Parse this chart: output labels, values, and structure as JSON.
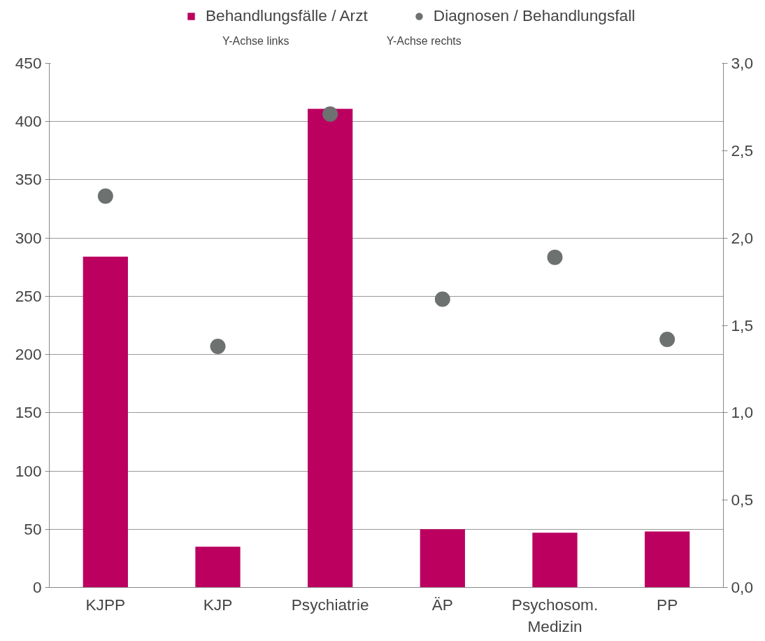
{
  "chart_data": {
    "type": "bar",
    "categories": [
      "KJPP",
      "KJP",
      "Psychiatrie",
      "ÄP",
      "Psychosom.\nMedizin",
      "PP"
    ],
    "series": [
      {
        "name": "Behandlungsfälle / Arzt",
        "color": "#bb0060",
        "values": [
          284,
          35,
          411,
          50,
          47,
          48
        ]
      },
      {
        "name": "Diagnosen / Behandlungsfall",
        "type": "scatter",
        "axis": "y2",
        "marker": "circle",
        "color": "#6d7270",
        "values": [
          2.24,
          1.38,
          2.71,
          1.65,
          1.89,
          1.42
        ]
      }
    ],
    "annotations": [
      "Y-Achse links",
      "Y-Achse rechts"
    ],
    "ylim": [
      0,
      450
    ],
    "yticks": [
      0,
      50,
      100,
      150,
      200,
      250,
      300,
      350,
      400,
      450
    ],
    "y2lim": [
      0,
      3
    ],
    "y2ticks": [
      {
        "value": 0,
        "label": "0,0"
      },
      {
        "value": 0.5,
        "label": "0,5"
      },
      {
        "value": 1,
        "label": "1,0"
      },
      {
        "value": 1.5,
        "label": "1,5"
      },
      {
        "value": 2,
        "label": "2,0"
      },
      {
        "value": 2.5,
        "label": "2,5"
      },
      {
        "value": 3,
        "label": "3,0"
      }
    ],
    "grid": "y",
    "legend": "top"
  }
}
